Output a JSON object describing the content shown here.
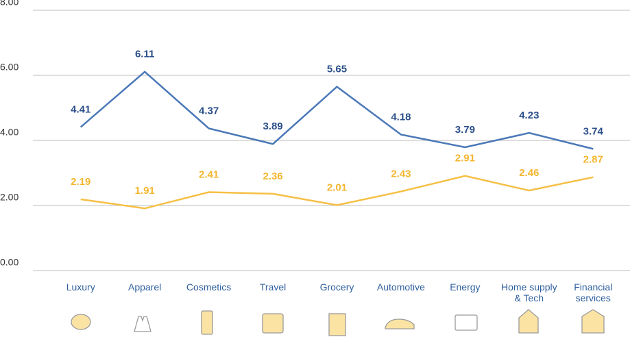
{
  "chart_data": {
    "type": "line",
    "categories": [
      "Luxury",
      "Apparel",
      "Cosmetics",
      "Travel",
      "Grocery",
      "Automotive",
      "Energy",
      "Home supply & Tech",
      "Financial services"
    ],
    "series": [
      {
        "color": "#4a78b8",
        "label_color": "#2b4f8a",
        "values": [
          4.41,
          6.11,
          4.37,
          3.89,
          5.65,
          4.18,
          3.79,
          4.23,
          3.74
        ]
      },
      {
        "color": "#f6bf45",
        "label_color": "#f3b62e",
        "values": [
          2.19,
          1.91,
          2.41,
          2.36,
          2.01,
          2.43,
          2.91,
          2.46,
          2.87
        ]
      }
    ],
    "ylim": [
      0,
      8
    ],
    "yticks": [
      {
        "value": 0,
        "label": "0.00"
      },
      {
        "value": 2,
        "label": "2.00"
      },
      {
        "value": 4,
        "label": "4.00"
      },
      {
        "value": 6,
        "label": "6.00"
      },
      {
        "value": 8,
        "label": "8.00"
      }
    ],
    "grid": true
  }
}
